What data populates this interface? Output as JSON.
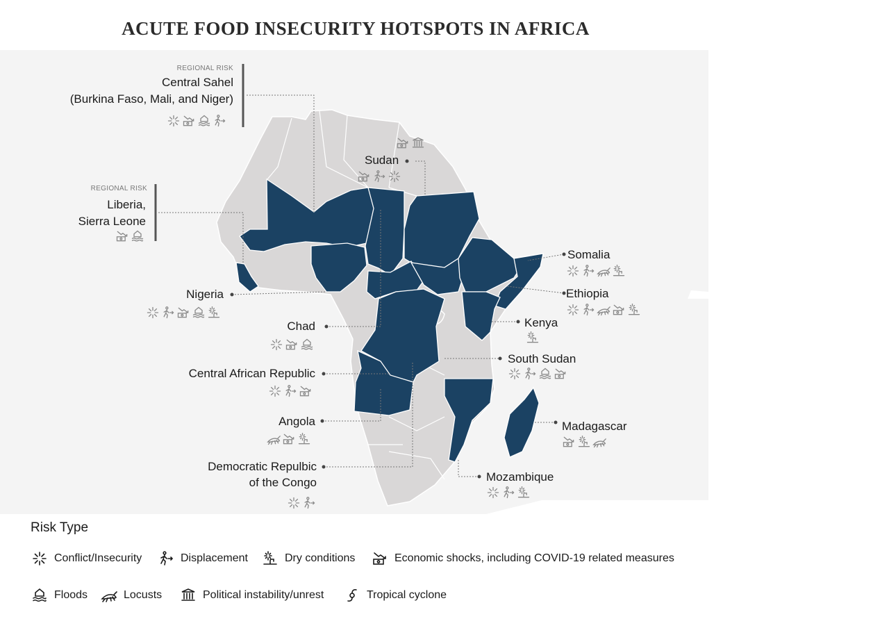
{
  "title": "ACUTE FOOD INSECURITY HOTSPOTS IN AFRICA",
  "colors": {
    "land": "#d9d7d7",
    "hotspot": "#1b4263",
    "border": "#ffffff",
    "leader": "#777777"
  },
  "regional_risk_tag": "REGIONAL RISK",
  "hotspots": {
    "sahel": {
      "tag": "REGIONAL RISK",
      "line1": "Central Sahel",
      "line2": "(Burkina Faso, Mali, and Niger)",
      "icons": [
        "conflict-icon",
        "economic-icon",
        "floods-icon",
        "displacement-icon"
      ]
    },
    "liberia": {
      "tag": "REGIONAL RISK",
      "line1": "Liberia,",
      "line2": "Sierra Leone",
      "icons": [
        "economic-icon",
        "floods-icon"
      ]
    },
    "sudan": {
      "name": "Sudan",
      "icons": [
        "economic-icon",
        "displacement-icon",
        "conflict-icon"
      ]
    },
    "north": {
      "icons": [
        "economic-icon",
        "political-icon"
      ]
    },
    "nigeria": {
      "name": "Nigeria",
      "icons": [
        "conflict-icon",
        "displacement-icon",
        "economic-icon",
        "floods-icon",
        "dry-icon"
      ]
    },
    "chad": {
      "name": "Chad",
      "icons": [
        "conflict-icon",
        "economic-icon",
        "floods-icon"
      ]
    },
    "car": {
      "name": "Central African Republic",
      "icons": [
        "conflict-icon",
        "displacement-icon",
        "economic-icon"
      ]
    },
    "angola": {
      "name": "Angola",
      "icons": [
        "locusts-icon",
        "economic-icon",
        "dry-icon"
      ]
    },
    "drc": {
      "line1": "Democratic Repulbic",
      "line2": "of the Congo",
      "icons": [
        "conflict-icon",
        "displacement-icon"
      ]
    },
    "somalia": {
      "name": "Somalia",
      "icons": [
        "conflict-icon",
        "displacement-icon",
        "locusts-icon",
        "dry-icon"
      ]
    },
    "ethiopia": {
      "name": "Ethiopia",
      "icons": [
        "conflict-icon",
        "displacement-icon",
        "locusts-icon",
        "economic-icon",
        "dry-icon"
      ]
    },
    "kenya": {
      "name": "Kenya",
      "icons": [
        "dry-icon"
      ]
    },
    "south_sudan": {
      "name": "South Sudan",
      "icons": [
        "conflict-icon",
        "displacement-icon",
        "floods-icon",
        "economic-icon"
      ]
    },
    "madagascar": {
      "name": "Madagascar",
      "icons": [
        "economic-icon",
        "dry-icon",
        "locusts-icon"
      ]
    },
    "mozambique": {
      "name": "Mozambique",
      "icons": [
        "conflict-icon",
        "displacement-icon",
        "dry-icon"
      ]
    }
  },
  "legend": {
    "title": "Risk Type",
    "conflict": "Conflict/Insecurity",
    "displacement": "Displacement",
    "dry": "Dry conditions",
    "economic": "Economic shocks, including COVID-19 related measures",
    "floods": "Floods",
    "locusts": "Locusts",
    "political": "Political instability/unrest",
    "cyclone": "Tropical cyclone"
  }
}
